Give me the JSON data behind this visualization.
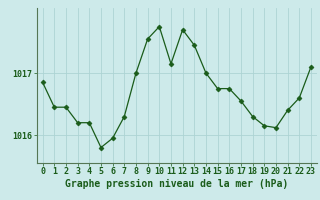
{
  "x": [
    0,
    1,
    2,
    3,
    4,
    5,
    6,
    7,
    8,
    9,
    10,
    11,
    12,
    13,
    14,
    15,
    16,
    17,
    18,
    19,
    20,
    21,
    22,
    23
  ],
  "y": [
    1016.85,
    1016.45,
    1016.45,
    1016.2,
    1016.2,
    1015.8,
    1015.95,
    1016.3,
    1017.0,
    1017.55,
    1017.75,
    1017.15,
    1017.7,
    1017.45,
    1017.0,
    1016.75,
    1016.75,
    1016.55,
    1016.3,
    1016.15,
    1016.12,
    1016.4,
    1016.6,
    1017.1
  ],
  "line_color": "#1a5c1a",
  "marker": "D",
  "marker_size": 2.5,
  "background_color": "#cdeaea",
  "grid_color": "#add4d4",
  "yticks": [
    1016,
    1017
  ],
  "ylim": [
    1015.55,
    1018.05
  ],
  "xlim": [
    -0.5,
    23.5
  ],
  "xlabel": "Graphe pression niveau de la mer (hPa)",
  "xlabel_fontsize": 7,
  "tick_fontsize": 6,
  "tick_color": "#1a5c1a"
}
